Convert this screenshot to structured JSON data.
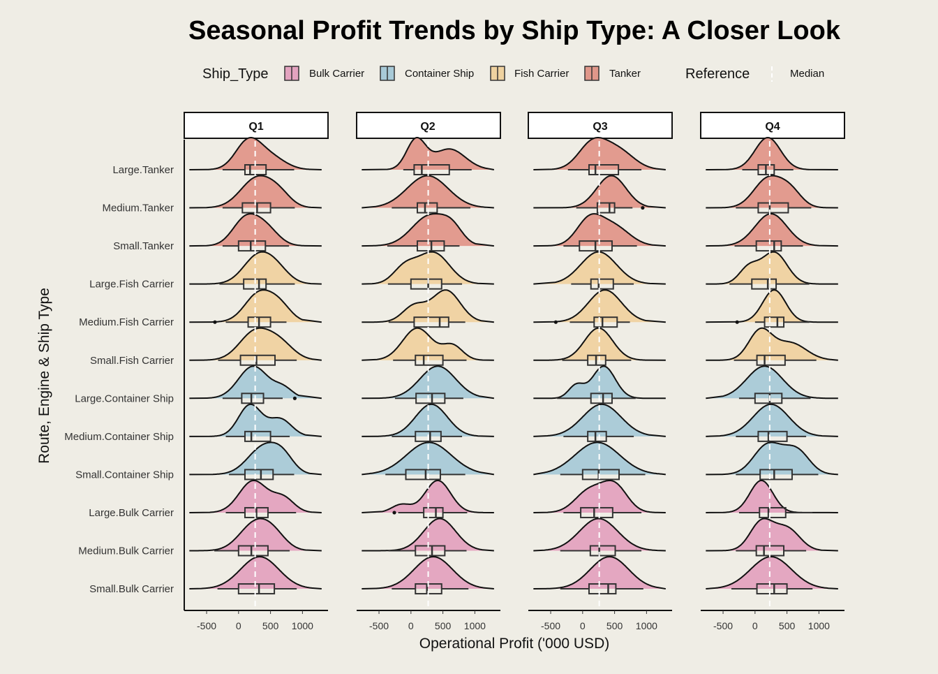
{
  "colors": {
    "background": "#efede5",
    "Bulk Carrier": "#e3a3bf",
    "Container Ship": "#a8cad7",
    "Fish Carrier": "#efd2a0",
    "Tanker": "#e0978a"
  },
  "legend": {
    "title": "Ship_Type",
    "items": [
      "Bulk Carrier",
      "Container Ship",
      "Fish Carrier",
      "Tanker"
    ],
    "reference_title": "Reference",
    "reference_label": "Median"
  },
  "chart_data": {
    "type": "ridgeline-violin-boxplot",
    "title": "Seasonal Profit Trends by Ship Type: A Closer Look",
    "xlabel": "Operational Profit ('000 USD)",
    "ylabel": "Route, Engine & Ship Type",
    "xlim": [
      -850,
      1400
    ],
    "xticks": [
      -500,
      0,
      500,
      1000
    ],
    "xtick_labels": [
      "-500",
      "0",
      "500",
      "1000"
    ],
    "panels": [
      "Q1",
      "Q2",
      "Q3",
      "Q4"
    ],
    "panel_median": [
      260,
      270,
      260,
      230
    ],
    "rows": [
      {
        "label": "Large.Tanker",
        "type": "Tanker"
      },
      {
        "label": "Medium.Tanker",
        "type": "Tanker"
      },
      {
        "label": "Small.Tanker",
        "type": "Tanker"
      },
      {
        "label": "Large.Fish Carrier",
        "type": "Fish Carrier"
      },
      {
        "label": "Medium.Fish Carrier",
        "type": "Fish Carrier"
      },
      {
        "label": "Small.Fish Carrier",
        "type": "Fish Carrier"
      },
      {
        "label": "Large.Container Ship",
        "type": "Container Ship"
      },
      {
        "label": "Medium.Container Ship",
        "type": "Container Ship"
      },
      {
        "label": "Small.Container Ship",
        "type": "Container Ship"
      },
      {
        "label": "Large.Bulk Carrier",
        "type": "Bulk Carrier"
      },
      {
        "label": "Medium.Bulk Carrier",
        "type": "Bulk Carrier"
      },
      {
        "label": "Small.Bulk Carrier",
        "type": "Bulk Carrier"
      }
    ],
    "series": [
      [
        {
          "min": -250,
          "q1": 100,
          "med": 180,
          "q3": 430,
          "max": 870,
          "peaks": [
            [
              150,
              1.0,
              200
            ],
            [
              500,
              0.45,
              230
            ]
          ],
          "out": []
        },
        {
          "min": -250,
          "q1": 60,
          "med": 290,
          "q3": 500,
          "max": 880,
          "peaks": [
            [
              300,
              1.0,
              260
            ],
            [
              650,
              0.3,
              180
            ]
          ],
          "out": []
        },
        {
          "min": -250,
          "q1": 0,
          "med": 190,
          "q3": 420,
          "max": 790,
          "peaks": [
            [
              100,
              0.95,
              200
            ],
            [
              420,
              0.65,
              200
            ]
          ],
          "out": []
        },
        {
          "min": -300,
          "q1": 80,
          "med": 320,
          "q3": 430,
          "max": 880,
          "peaks": [
            [
              300,
              1.0,
              230
            ],
            [
              600,
              0.45,
              200
            ]
          ],
          "out": []
        },
        {
          "min": -200,
          "q1": 150,
          "med": 320,
          "q3": 500,
          "max": 750,
          "peaks": [
            [
              320,
              1.0,
              220
            ],
            [
              650,
              0.5,
              180
            ]
          ],
          "out": [
            -370
          ]
        },
        {
          "min": -320,
          "q1": 30,
          "med": 280,
          "q3": 570,
          "max": 910,
          "peaks": [
            [
              250,
              1.0,
              240
            ],
            [
              640,
              0.6,
              220
            ]
          ],
          "out": []
        },
        {
          "min": -250,
          "q1": 50,
          "med": 200,
          "q3": 390,
          "max": 690,
          "peaks": [
            [
              230,
              1.0,
              230
            ],
            [
              700,
              0.3,
              150
            ]
          ],
          "out": [
            880
          ]
        },
        {
          "min": -200,
          "q1": 100,
          "med": 200,
          "q3": 500,
          "max": 800,
          "peaks": [
            [
              180,
              1.0,
              180
            ],
            [
              650,
              0.55,
              180
            ]
          ],
          "out": []
        },
        {
          "min": -150,
          "q1": 100,
          "med": 350,
          "q3": 540,
          "max": 870,
          "peaks": [
            [
              400,
              1.0,
              250
            ],
            [
              700,
              0.45,
              170
            ]
          ],
          "out": []
        },
        {
          "min": -200,
          "q1": 100,
          "med": 280,
          "q3": 460,
          "max": 900,
          "peaks": [
            [
              230,
              1.0,
              220
            ],
            [
              700,
              0.45,
              170
            ]
          ],
          "out": []
        },
        {
          "min": -380,
          "q1": 0,
          "med": 200,
          "q3": 460,
          "max": 800,
          "peaks": [
            [
              250,
              1.0,
              240
            ],
            [
              550,
              0.5,
              200
            ]
          ],
          "out": []
        },
        {
          "min": -330,
          "q1": 0,
          "med": 320,
          "q3": 560,
          "max": 910,
          "peaks": [
            [
              330,
              1.0,
              300
            ]
          ],
          "out": []
        }
      ],
      [
        {
          "min": -120,
          "q1": 50,
          "med": 170,
          "q3": 600,
          "max": 950,
          "peaks": [
            [
              80,
              1.0,
              150
            ],
            [
              600,
              0.7,
              250
            ]
          ],
          "out": []
        },
        {
          "min": -300,
          "q1": 100,
          "med": 220,
          "q3": 410,
          "max": 930,
          "peaks": [
            [
              260,
              1.0,
              320
            ]
          ],
          "out": []
        },
        {
          "min": -370,
          "q1": 100,
          "med": 320,
          "q3": 520,
          "max": 760,
          "peaks": [
            [
              300,
              1.0,
              280
            ],
            [
              650,
              0.4,
              160
            ]
          ],
          "out": []
        },
        {
          "min": -360,
          "q1": 0,
          "med": 270,
          "q3": 480,
          "max": 800,
          "peaks": [
            [
              -100,
              0.5,
              180
            ],
            [
              350,
              1.0,
              250
            ]
          ],
          "out": []
        },
        {
          "min": -350,
          "q1": 50,
          "med": 450,
          "q3": 590,
          "max": 850,
          "peaks": [
            [
              50,
              0.5,
              180
            ],
            [
              550,
              1.0,
              220
            ]
          ],
          "out": []
        },
        {
          "min": -280,
          "q1": 70,
          "med": 200,
          "q3": 500,
          "max": 870,
          "peaks": [
            [
              100,
              1.0,
              230
            ],
            [
              650,
              0.45,
              160
            ]
          ],
          "out": []
        },
        {
          "min": -250,
          "q1": 80,
          "med": 330,
          "q3": 530,
          "max": 820,
          "peaks": [
            [
              420,
              1.0,
              280
            ]
          ],
          "out": []
        },
        {
          "min": -300,
          "q1": 70,
          "med": 300,
          "q3": 470,
          "max": 800,
          "peaks": [
            [
              320,
              1.0,
              250
            ]
          ],
          "out": []
        },
        {
          "min": -400,
          "q1": -80,
          "med": 230,
          "q3": 460,
          "max": 850,
          "peaks": [
            [
              280,
              1.0,
              350
            ]
          ],
          "out": []
        },
        {
          "min": -200,
          "q1": 200,
          "med": 390,
          "q3": 500,
          "max": 880,
          "peaks": [
            [
              -150,
              0.25,
              150
            ],
            [
              420,
              1.0,
              200
            ]
          ],
          "out": [
            -260
          ]
        },
        {
          "min": -350,
          "q1": 70,
          "med": 330,
          "q3": 530,
          "max": 870,
          "peaks": [
            [
              450,
              1.0,
              250
            ]
          ],
          "out": []
        },
        {
          "min": -300,
          "q1": 70,
          "med": 250,
          "q3": 480,
          "max": 900,
          "peaks": [
            [
              350,
              1.0,
              300
            ]
          ],
          "out": []
        }
      ],
      [
        {
          "min": -230,
          "q1": 100,
          "med": 200,
          "q3": 560,
          "max": 920,
          "peaks": [
            [
              150,
              1.0,
              220
            ],
            [
              550,
              0.75,
              250
            ]
          ],
          "out": []
        },
        {
          "min": -100,
          "q1": 230,
          "med": 420,
          "q3": 500,
          "max": 780,
          "peaks": [
            [
              450,
              1.0,
              230
            ]
          ],
          "out": [
            940
          ]
        },
        {
          "min": -300,
          "q1": -50,
          "med": 200,
          "q3": 460,
          "max": 850,
          "peaks": [
            [
              100,
              1.0,
              200
            ],
            [
              480,
              0.8,
              250
            ]
          ],
          "out": []
        },
        {
          "min": -180,
          "q1": 130,
          "med": 250,
          "q3": 480,
          "max": 800,
          "peaks": [
            [
              250,
              1.0,
              280
            ]
          ],
          "out": []
        },
        {
          "min": -200,
          "q1": 180,
          "med": 310,
          "q3": 540,
          "max": 740,
          "peaks": [
            [
              350,
              1.0,
              260
            ]
          ],
          "out": [
            -420
          ]
        },
        {
          "min": -320,
          "q1": 80,
          "med": 210,
          "q3": 360,
          "max": 760,
          "peaks": [
            [
              250,
              1.0,
              220
            ]
          ],
          "out": []
        },
        {
          "min": -400,
          "q1": 130,
          "med": 320,
          "q3": 460,
          "max": 830,
          "peaks": [
            [
              -100,
              0.4,
              120
            ],
            [
              330,
              1.0,
              180
            ]
          ],
          "out": []
        },
        {
          "min": -300,
          "q1": 80,
          "med": 200,
          "q3": 370,
          "max": 800,
          "peaks": [
            [
              300,
              1.0,
              300
            ]
          ],
          "out": []
        },
        {
          "min": -350,
          "q1": 0,
          "med": 250,
          "q3": 570,
          "max": 980,
          "peaks": [
            [
              230,
              1.0,
              350
            ]
          ],
          "out": []
        },
        {
          "min": -300,
          "q1": -30,
          "med": 180,
          "q3": 470,
          "max": 920,
          "peaks": [
            [
              100,
              0.8,
              220
            ],
            [
              500,
              1.0,
              200
            ]
          ],
          "out": []
        },
        {
          "min": -350,
          "q1": 120,
          "med": 260,
          "q3": 510,
          "max": 920,
          "peaks": [
            [
              250,
              1.0,
              300
            ]
          ],
          "out": []
        },
        {
          "min": -350,
          "q1": 100,
          "med": 400,
          "q3": 520,
          "max": 950,
          "peaks": [
            [
              420,
              1.0,
              300
            ]
          ],
          "out": []
        }
      ],
      [
        {
          "min": -200,
          "q1": 50,
          "med": 170,
          "q3": 300,
          "max": 600,
          "peaks": [
            [
              200,
              1.0,
              200
            ]
          ],
          "out": []
        },
        {
          "min": -300,
          "q1": 50,
          "med": 230,
          "q3": 520,
          "max": 880,
          "peaks": [
            [
              200,
              1.0,
              220
            ],
            [
              550,
              0.55,
              180
            ]
          ],
          "out": []
        },
        {
          "min": -320,
          "q1": 20,
          "med": 300,
          "q3": 410,
          "max": 750,
          "peaks": [
            [
              250,
              1.0,
              250
            ]
          ],
          "out": []
        },
        {
          "min": -400,
          "q1": -50,
          "med": 200,
          "q3": 330,
          "max": 850,
          "peaks": [
            [
              -100,
              0.5,
              150
            ],
            [
              300,
              1.0,
              200
            ]
          ],
          "out": []
        },
        {
          "min": 0,
          "q1": 150,
          "med": 350,
          "q3": 450,
          "max": 850,
          "peaks": [
            [
              300,
              1.0,
              180
            ]
          ],
          "out": [
            -280
          ]
        },
        {
          "min": -330,
          "q1": 30,
          "med": 150,
          "q3": 470,
          "max": 960,
          "peaks": [
            [
              80,
              1.0,
              180
            ],
            [
              550,
              0.6,
              250
            ]
          ],
          "out": []
        },
        {
          "min": -250,
          "q1": 0,
          "med": 230,
          "q3": 420,
          "max": 870,
          "peaks": [
            [
              150,
              1.0,
              280
            ]
          ],
          "out": []
        },
        {
          "min": -300,
          "q1": 50,
          "med": 210,
          "q3": 500,
          "max": 800,
          "peaks": [
            [
              250,
              1.0,
              280
            ]
          ],
          "out": []
        },
        {
          "min": -300,
          "q1": 80,
          "med": 300,
          "q3": 580,
          "max": 990,
          "peaks": [
            [
              200,
              1.0,
              220
            ],
            [
              650,
              0.8,
              200
            ]
          ],
          "out": []
        },
        {
          "min": -250,
          "q1": 70,
          "med": 210,
          "q3": 480,
          "max": 900,
          "peaks": [
            [
              100,
              1.0,
              180
            ]
          ],
          "out": []
        },
        {
          "min": -300,
          "q1": 20,
          "med": 140,
          "q3": 450,
          "max": 800,
          "peaks": [
            [
              100,
              0.9,
              180
            ],
            [
              500,
              0.7,
              200
            ]
          ],
          "out": []
        },
        {
          "min": -370,
          "q1": 30,
          "med": 300,
          "q3": 500,
          "max": 900,
          "peaks": [
            [
              250,
              1.0,
              320
            ]
          ],
          "out": []
        }
      ]
    ]
  }
}
